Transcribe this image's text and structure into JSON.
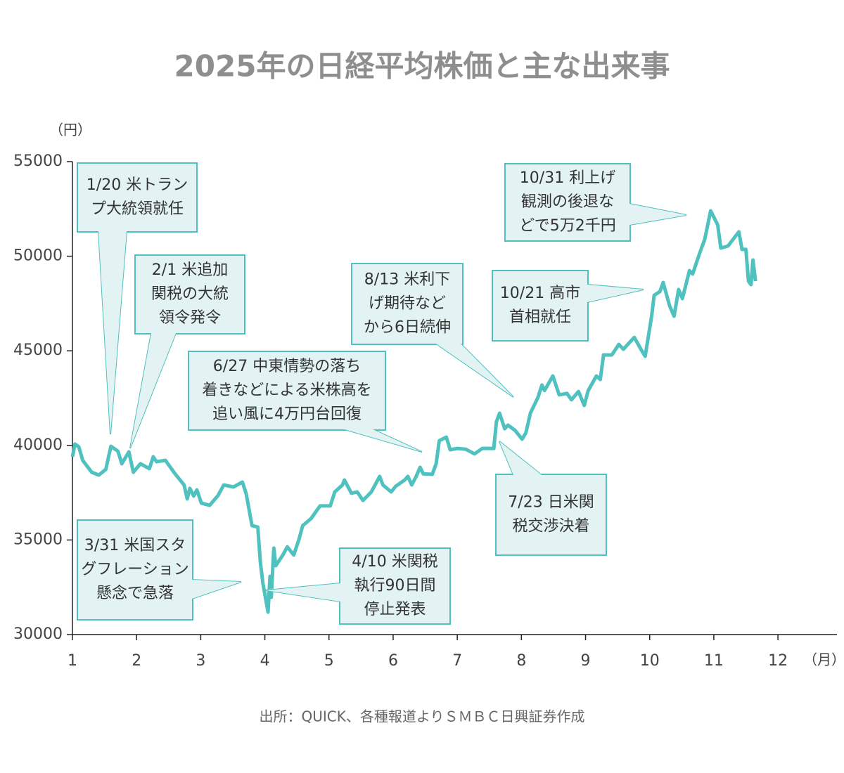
{
  "chart_data": {
    "type": "line",
    "title": "2025年の日経平均株価と主な出来事",
    "y_unit": "（円）",
    "x_unit": "（月）",
    "source": "出所：QUICK、各種報道よりＳＭＢＣ日興証券作成",
    "color": "#4fc1bf",
    "grid": false,
    "xlim": [
      1,
      12.92
    ],
    "xticks": [
      1,
      2,
      3,
      4,
      5,
      6,
      7,
      8,
      9,
      10,
      11,
      12
    ],
    "ylim": [
      30000,
      55000
    ],
    "yticks": [
      30000,
      35000,
      40000,
      45000,
      50000,
      55000
    ],
    "x": [
      1.0,
      1.04,
      1.1,
      1.16,
      1.3,
      1.41,
      1.52,
      1.6,
      1.71,
      1.77,
      1.88,
      1.95,
      2.06,
      2.2,
      2.26,
      2.31,
      2.45,
      2.59,
      2.74,
      2.79,
      2.83,
      2.89,
      2.94,
      3.01,
      3.14,
      3.27,
      3.36,
      3.51,
      3.65,
      3.71,
      3.8,
      3.89,
      3.93,
      3.97,
      4.05,
      4.08,
      4.1,
      4.14,
      4.17,
      4.28,
      4.35,
      4.45,
      4.53,
      4.59,
      4.72,
      4.86,
      5.02,
      5.09,
      5.21,
      5.24,
      5.35,
      5.44,
      5.53,
      5.66,
      5.79,
      5.84,
      5.97,
      6.04,
      6.18,
      6.23,
      6.29,
      6.36,
      6.42,
      6.47,
      6.61,
      6.67,
      6.72,
      6.83,
      6.89,
      7.0,
      7.13,
      7.27,
      7.39,
      7.57,
      7.61,
      7.66,
      7.74,
      7.79,
      7.9,
      8.01,
      8.07,
      8.14,
      8.26,
      8.32,
      8.36,
      8.49,
      8.59,
      8.71,
      8.78,
      8.89,
      8.98,
      9.04,
      9.17,
      9.23,
      9.28,
      9.41,
      9.52,
      9.59,
      9.76,
      9.87,
      9.93,
      10.03,
      10.07,
      10.16,
      10.21,
      10.31,
      10.38,
      10.45,
      10.51,
      10.62,
      10.67,
      10.78,
      10.86,
      10.95,
      11.06,
      11.11,
      11.22,
      11.39,
      11.44,
      11.5,
      11.54,
      11.58,
      11.61,
      11.65
    ],
    "values": [
      39400,
      40070,
      39920,
      39210,
      38580,
      38430,
      38730,
      39950,
      39690,
      39030,
      39660,
      38580,
      39030,
      38770,
      39400,
      39140,
      39210,
      38540,
      37910,
      37170,
      37730,
      37320,
      37650,
      36950,
      36830,
      37350,
      37910,
      37800,
      38060,
      37430,
      35760,
      35680,
      33820,
      32710,
      31190,
      33080,
      31970,
      34570,
      33640,
      34200,
      34640,
      34200,
      35010,
      35760,
      36130,
      36800,
      36800,
      37540,
      37910,
      38170,
      37470,
      37540,
      37090,
      37540,
      38360,
      37910,
      37540,
      37840,
      38170,
      38360,
      37910,
      38360,
      38840,
      38500,
      38470,
      39030,
      40250,
      40440,
      39770,
      39840,
      39800,
      39550,
      39840,
      39840,
      41250,
      41700,
      40880,
      41070,
      40800,
      40330,
      40660,
      41700,
      42550,
      43190,
      42900,
      43670,
      42670,
      42750,
      42410,
      42850,
      42110,
      42890,
      43670,
      43480,
      44780,
      44780,
      45340,
      45080,
      45710,
      45040,
      44710,
      46830,
      47940,
      48130,
      48610,
      47380,
      46830,
      48240,
      47760,
      49240,
      49060,
      50170,
      50910,
      52400,
      51660,
      50430,
      50540,
      51290,
      50360,
      50360,
      48680,
      48500,
      49800,
      48680
    ],
    "annotations": [
      {
        "lines": [
          "1/20 米トラン",
          "プ大統領就任"
        ]
      },
      {
        "lines": [
          "2/1 米追加",
          "関税の大統",
          "領令発令"
        ]
      },
      {
        "lines": [
          "3/31 米国スタ",
          "グフレーション",
          "懸念で急落"
        ]
      },
      {
        "lines": [
          "4/10 米関税",
          "執行90日間",
          "停止発表"
        ]
      },
      {
        "lines": [
          "6/27 中東情勢の落ち",
          "着きなどによる米株高を",
          "追い風に4万円台回復"
        ]
      },
      {
        "lines": [
          "7/23 日米関",
          "税交渉決着"
        ]
      },
      {
        "lines": [
          "8/13 米利下",
          "げ期待など",
          "から6日続伸"
        ]
      },
      {
        "lines": [
          "10/21 高市",
          "首相就任"
        ]
      },
      {
        "lines": [
          "10/31 利上げ",
          "観測の後退な",
          "どで5万2千円"
        ]
      }
    ]
  }
}
